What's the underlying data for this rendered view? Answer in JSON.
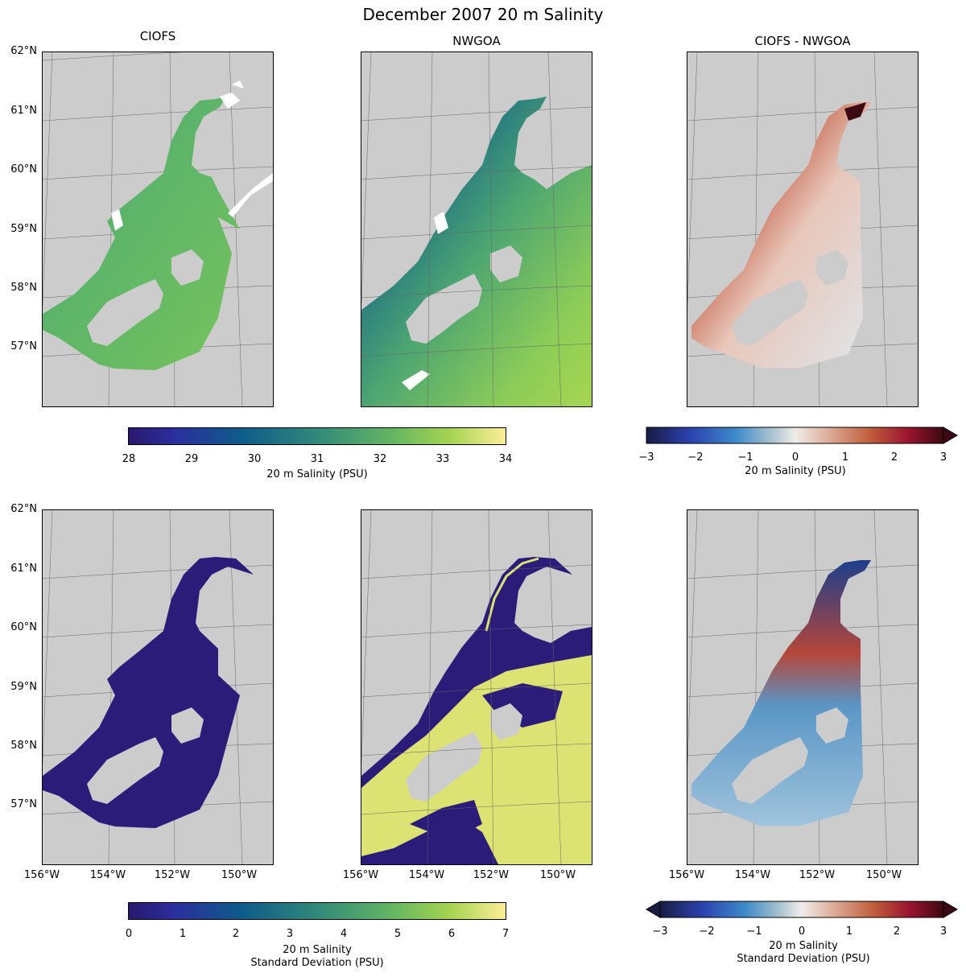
{
  "figure": {
    "title": "December 2007 20 m Salinity",
    "column_titles": [
      "CIOFS",
      "NWGOA",
      "CIOFS - NWGOA"
    ]
  },
  "axes": {
    "lat_labels": [
      "62°N",
      "61°N",
      "60°N",
      "59°N",
      "58°N",
      "57°N"
    ],
    "lon_labels": [
      "156°W",
      "154°W",
      "152°W",
      "150°W"
    ]
  },
  "colorbars": {
    "mean_salinity": {
      "colormap": "haline",
      "ticks": [
        "28",
        "29",
        "30",
        "31",
        "32",
        "33",
        "34"
      ],
      "label": "20 m Salinity (PSU)",
      "range": [
        28,
        34
      ]
    },
    "mean_difference": {
      "colormap": "balance",
      "ticks": [
        "−3",
        "−2",
        "−1",
        "0",
        "1",
        "2",
        "3"
      ],
      "label": "20 m Salinity (PSU)",
      "range": [
        -3,
        3
      ],
      "extend": "max"
    },
    "std_salinity": {
      "colormap": "haline",
      "ticks": [
        "0",
        "1",
        "2",
        "3",
        "4",
        "5",
        "6",
        "7"
      ],
      "label_line1": "20 m Salinity",
      "label_line2": "Standard Deviation (PSU)",
      "range": [
        0,
        7
      ]
    },
    "std_difference": {
      "colormap": "balance",
      "ticks": [
        "−3",
        "−2",
        "−1",
        "0",
        "1",
        "2",
        "3"
      ],
      "label_line1": "20 m Salinity",
      "label_line2": "Standard Deviation (PSU)",
      "range": [
        -3,
        3
      ],
      "extend": "both"
    }
  },
  "colors": {
    "land": "#cccccc",
    "haline_low": "#2a186c",
    "haline_high": "#fdee99",
    "balance_low": "#181c43",
    "balance_mid": "#f0ecea",
    "balance_high": "#3c0912"
  }
}
